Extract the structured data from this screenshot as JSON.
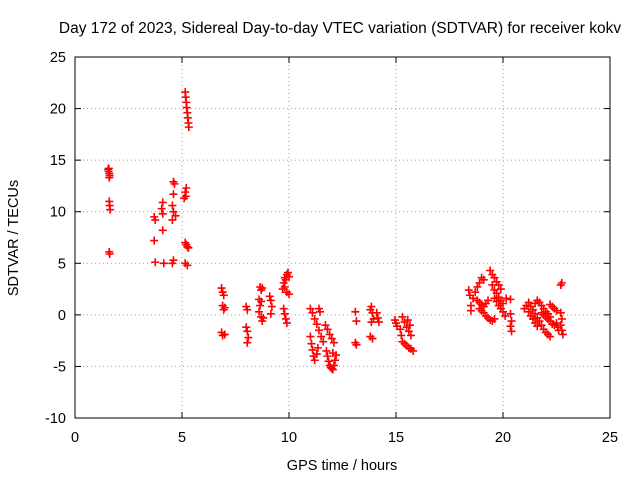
{
  "chart_data": {
    "type": "scatter",
    "title": "Day 172 of 2023, Sidereal Day-to-day VTEC variation (SDTVAR) for receiver kokv",
    "xlabel": "GPS time / hours",
    "ylabel": "SDTVAR / TECUs",
    "xlim": [
      0,
      25
    ],
    "ylim": [
      -10,
      25
    ],
    "xticks": [
      0,
      5,
      10,
      15,
      20,
      25
    ],
    "yticks": [
      -10,
      -5,
      0,
      5,
      10,
      15,
      20,
      25
    ],
    "xtick_labels": [
      "0",
      "5",
      "10",
      "15",
      "20",
      "25"
    ],
    "ytick_labels": [
      "-10",
      "-5",
      "0",
      "5",
      "10",
      "15",
      "20",
      "25"
    ],
    "grid": true,
    "marker": "plus",
    "series": [
      {
        "name": "SDTVAR",
        "color": "#ff0000",
        "points": [
          [
            1.55,
            14.1
          ],
          [
            1.57,
            13.9
          ],
          [
            1.6,
            13.7
          ],
          [
            1.62,
            13.5
          ],
          [
            1.58,
            14.2
          ],
          [
            1.6,
            13.3
          ],
          [
            1.6,
            11.0
          ],
          [
            1.62,
            10.6
          ],
          [
            1.64,
            10.2
          ],
          [
            1.6,
            6.1
          ],
          [
            1.62,
            5.9
          ],
          [
            3.7,
            9.5
          ],
          [
            3.75,
            9.2
          ],
          [
            3.7,
            7.2
          ],
          [
            3.75,
            5.1
          ],
          [
            4.1,
            10.9
          ],
          [
            4.05,
            10.3
          ],
          [
            4.1,
            9.8
          ],
          [
            4.1,
            8.2
          ],
          [
            4.15,
            5.0
          ],
          [
            4.6,
            12.9
          ],
          [
            4.65,
            12.7
          ],
          [
            4.6,
            11.7
          ],
          [
            4.55,
            10.6
          ],
          [
            4.6,
            10.0
          ],
          [
            4.55,
            9.2
          ],
          [
            4.7,
            9.6
          ],
          [
            4.6,
            5.3
          ],
          [
            4.55,
            5.0
          ],
          [
            5.15,
            21.6
          ],
          [
            5.17,
            21.1
          ],
          [
            5.2,
            20.6
          ],
          [
            5.22,
            20.1
          ],
          [
            5.25,
            19.6
          ],
          [
            5.27,
            19.1
          ],
          [
            5.3,
            18.6
          ],
          [
            5.32,
            18.2
          ],
          [
            5.2,
            12.3
          ],
          [
            5.15,
            11.9
          ],
          [
            5.18,
            11.5
          ],
          [
            5.1,
            11.3
          ],
          [
            5.15,
            7.0
          ],
          [
            5.2,
            6.8
          ],
          [
            5.25,
            6.6
          ],
          [
            5.3,
            6.5
          ],
          [
            5.15,
            5.0
          ],
          [
            5.25,
            4.8
          ],
          [
            6.85,
            2.6
          ],
          [
            6.9,
            2.2
          ],
          [
            6.95,
            1.9
          ],
          [
            6.9,
            0.9
          ],
          [
            6.95,
            0.5
          ],
          [
            7.0,
            0.7
          ],
          [
            6.85,
            -1.7
          ],
          [
            6.9,
            -2.0
          ],
          [
            7.0,
            -1.9
          ],
          [
            8.0,
            0.8
          ],
          [
            8.05,
            0.5
          ],
          [
            8.0,
            -1.2
          ],
          [
            8.05,
            -1.6
          ],
          [
            8.1,
            -2.2
          ],
          [
            8.05,
            -2.7
          ],
          [
            8.65,
            2.7
          ],
          [
            8.7,
            2.4
          ],
          [
            8.75,
            2.6
          ],
          [
            8.6,
            1.5
          ],
          [
            8.7,
            1.3
          ],
          [
            8.65,
            0.9
          ],
          [
            8.6,
            0.3
          ],
          [
            8.7,
            -0.2
          ],
          [
            8.75,
            -0.6
          ],
          [
            8.8,
            -0.3
          ],
          [
            9.1,
            1.8
          ],
          [
            9.15,
            1.4
          ],
          [
            9.2,
            0.8
          ],
          [
            9.15,
            0.1
          ],
          [
            9.75,
            3.1
          ],
          [
            9.8,
            3.6
          ],
          [
            9.85,
            3.4
          ],
          [
            9.9,
            3.9
          ],
          [
            9.95,
            4.1
          ],
          [
            10.0,
            3.7
          ],
          [
            9.8,
            2.7
          ],
          [
            9.9,
            2.2
          ],
          [
            10.0,
            2.0
          ],
          [
            9.7,
            2.5
          ],
          [
            9.75,
            0.6
          ],
          [
            9.8,
            0.1
          ],
          [
            9.85,
            -0.4
          ],
          [
            9.9,
            -0.8
          ],
          [
            11.0,
            0.6
          ],
          [
            11.1,
            0.2
          ],
          [
            11.2,
            -0.4
          ],
          [
            11.3,
            -0.9
          ],
          [
            11.4,
            -1.5
          ],
          [
            11.5,
            -2.1
          ],
          [
            11.6,
            -2.6
          ],
          [
            11.0,
            -2.1
          ],
          [
            11.05,
            -2.8
          ],
          [
            11.1,
            -3.4
          ],
          [
            11.15,
            -4.0
          ],
          [
            11.2,
            -4.4
          ],
          [
            11.3,
            -3.8
          ],
          [
            11.35,
            -3.2
          ],
          [
            11.4,
            0.6
          ],
          [
            11.45,
            0.3
          ],
          [
            11.7,
            -1.0
          ],
          [
            11.8,
            -1.4
          ],
          [
            11.9,
            -1.9
          ],
          [
            12.0,
            -2.3
          ],
          [
            12.1,
            -2.7
          ],
          [
            11.75,
            -3.5
          ],
          [
            11.8,
            -4.0
          ],
          [
            11.85,
            -4.5
          ],
          [
            11.9,
            -4.9
          ],
          [
            11.95,
            -5.1
          ],
          [
            12.0,
            -5.2
          ],
          [
            12.05,
            -5.3
          ],
          [
            12.1,
            -4.9
          ],
          [
            12.15,
            -4.4
          ],
          [
            12.2,
            -3.9
          ],
          [
            12.05,
            -3.7
          ],
          [
            13.1,
            0.3
          ],
          [
            13.15,
            -0.6
          ],
          [
            13.1,
            -2.7
          ],
          [
            13.15,
            -2.9
          ],
          [
            13.8,
            0.5
          ],
          [
            13.85,
            0.8
          ],
          [
            13.9,
            0.2
          ],
          [
            13.95,
            -0.4
          ],
          [
            13.85,
            -0.7
          ],
          [
            13.8,
            -2.1
          ],
          [
            13.9,
            -2.3
          ],
          [
            14.1,
            0.2
          ],
          [
            14.15,
            -0.3
          ],
          [
            14.2,
            -0.7
          ],
          [
            14.95,
            -0.5
          ],
          [
            15.0,
            -0.8
          ],
          [
            15.05,
            -1.1
          ],
          [
            15.3,
            -0.2
          ],
          [
            15.4,
            -0.7
          ],
          [
            15.5,
            -1.2
          ],
          [
            15.6,
            -1.6
          ],
          [
            15.7,
            -2.0
          ],
          [
            15.2,
            -1.4
          ],
          [
            15.25,
            -2.0
          ],
          [
            15.3,
            -2.6
          ],
          [
            15.4,
            -2.8
          ],
          [
            15.5,
            -3.0
          ],
          [
            15.6,
            -3.2
          ],
          [
            15.7,
            -3.3
          ],
          [
            15.8,
            -3.5
          ],
          [
            15.55,
            -0.5
          ],
          [
            15.65,
            -1.0
          ],
          [
            18.4,
            2.4
          ],
          [
            18.45,
            1.9
          ],
          [
            18.5,
            0.9
          ],
          [
            18.5,
            0.4
          ],
          [
            18.6,
            1.6
          ],
          [
            18.7,
            2.2
          ],
          [
            18.8,
            2.7
          ],
          [
            18.9,
            3.1
          ],
          [
            19.0,
            3.6
          ],
          [
            19.1,
            3.4
          ],
          [
            18.8,
            1.4
          ],
          [
            18.9,
            1.2
          ],
          [
            19.0,
            1.0
          ],
          [
            19.1,
            0.8
          ],
          [
            19.2,
            1.1
          ],
          [
            19.3,
            1.4
          ],
          [
            18.9,
            0.6
          ],
          [
            19.0,
            0.4
          ],
          [
            19.1,
            0.2
          ],
          [
            19.2,
            -0.1
          ],
          [
            19.3,
            -0.3
          ],
          [
            19.4,
            -0.5
          ],
          [
            19.5,
            -0.6
          ],
          [
            19.6,
            -0.4
          ],
          [
            19.4,
            4.3
          ],
          [
            19.5,
            3.9
          ],
          [
            19.6,
            3.6
          ],
          [
            19.7,
            3.2
          ],
          [
            19.8,
            2.9
          ],
          [
            19.9,
            2.5
          ],
          [
            19.5,
            2.9
          ],
          [
            19.6,
            2.4
          ],
          [
            19.7,
            2.1
          ],
          [
            19.8,
            1.7
          ],
          [
            19.9,
            1.4
          ],
          [
            20.0,
            1.1
          ],
          [
            19.6,
            1.6
          ],
          [
            19.7,
            1.3
          ],
          [
            19.8,
            0.9
          ],
          [
            19.9,
            0.6
          ],
          [
            20.0,
            0.3
          ],
          [
            20.1,
            -0.1
          ],
          [
            20.15,
            1.6
          ],
          [
            20.35,
            1.5
          ],
          [
            20.35,
            0.1
          ],
          [
            20.4,
            -0.6
          ],
          [
            20.35,
            -1.1
          ],
          [
            20.4,
            -1.6
          ],
          [
            21.0,
            0.6
          ],
          [
            21.1,
            0.9
          ],
          [
            21.2,
            1.2
          ],
          [
            21.3,
            0.8
          ],
          [
            21.4,
            0.5
          ],
          [
            21.5,
            0.1
          ],
          [
            21.6,
            -0.3
          ],
          [
            21.7,
            -0.6
          ],
          [
            21.8,
            -1.0
          ],
          [
            21.9,
            -1.4
          ],
          [
            22.0,
            -1.7
          ],
          [
            22.1,
            -1.9
          ],
          [
            22.2,
            -2.1
          ],
          [
            21.2,
            0.3
          ],
          [
            21.3,
            -0.1
          ],
          [
            21.4,
            -0.4
          ],
          [
            21.5,
            -0.8
          ],
          [
            21.6,
            -1.1
          ],
          [
            21.5,
            1.1
          ],
          [
            21.6,
            1.4
          ],
          [
            21.7,
            1.2
          ],
          [
            21.8,
            0.9
          ],
          [
            21.9,
            0.6
          ],
          [
            22.0,
            0.3
          ],
          [
            22.1,
            0.1
          ],
          [
            22.2,
            -0.2
          ],
          [
            21.8,
            0.2
          ],
          [
            21.9,
            0.0
          ],
          [
            22.0,
            -0.2
          ],
          [
            22.1,
            -0.4
          ],
          [
            22.2,
            -0.6
          ],
          [
            22.3,
            -0.9
          ],
          [
            22.4,
            -1.0
          ],
          [
            22.2,
            1.0
          ],
          [
            22.3,
            0.8
          ],
          [
            22.4,
            0.6
          ],
          [
            22.5,
            0.4
          ],
          [
            22.5,
            -0.8
          ],
          [
            22.55,
            -1.2
          ],
          [
            22.6,
            -1.5
          ],
          [
            22.7,
            0.2
          ],
          [
            22.75,
            -0.4
          ],
          [
            22.7,
            -1.0
          ],
          [
            22.75,
            -1.5
          ],
          [
            22.8,
            -1.9
          ],
          [
            22.7,
            2.9
          ],
          [
            22.75,
            3.1
          ]
        ]
      }
    ]
  }
}
